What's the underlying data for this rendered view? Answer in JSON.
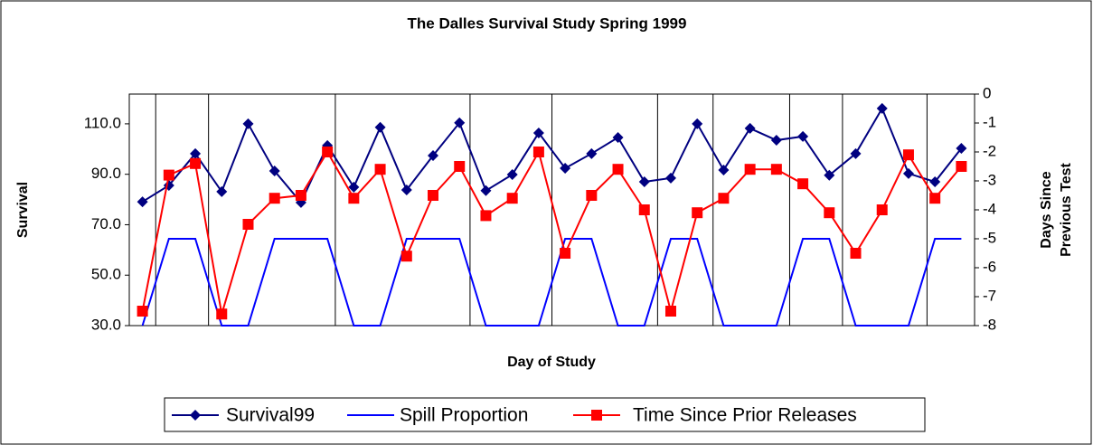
{
  "chart_data": {
    "type": "line",
    "title": "The Dalles Survival Study Spring 1999",
    "xlabel": "Day of Study",
    "ylabel": "Survival",
    "y2label": [
      "Days Since",
      "Previous Test"
    ],
    "categories": [
      null,
      null,
      null,
      null,
      null,
      null,
      null,
      null,
      null,
      null,
      null,
      null,
      null,
      null,
      null,
      null,
      null,
      null,
      null,
      null,
      null,
      null,
      null,
      null,
      null,
      null,
      null,
      null,
      null,
      null,
      null,
      null
    ],
    "dividers": [
      0.5,
      2.5,
      7.3,
      12.4,
      15.5,
      19.5,
      21.6,
      24.5,
      26.5,
      29.7
    ],
    "ylim": [
      30,
      121.8
    ],
    "yticks": [
      {
        "value": 30,
        "label": "30.0"
      },
      {
        "value": 50,
        "label": "50.0"
      },
      {
        "value": 70,
        "label": "70.0"
      },
      {
        "value": 90,
        "label": "90.0"
      },
      {
        "value": 110,
        "label": "110.0"
      }
    ],
    "y2lim": [
      -8,
      0
    ],
    "y2ticks": [
      0,
      -1,
      -2,
      -3,
      -4,
      -5,
      -6,
      -7,
      -8
    ],
    "legend": "bottom",
    "series": [
      {
        "name": "Survival99",
        "color": "#000080",
        "marker": "diamond",
        "values": [
          79.1,
          85.6,
          98.2,
          83.1,
          110,
          91.3,
          78.8,
          101.4,
          84.9,
          108.6,
          83.8,
          97.4,
          110.4,
          83.5,
          89.9,
          106.4,
          92.4,
          98.2,
          104.6,
          87,
          88.5,
          110,
          91.7,
          108.2,
          103.5,
          105,
          89.6,
          98.2,
          116.1,
          90.3,
          87,
          100.3
        ]
      },
      {
        "name": "Spill Proportion",
        "color": "#0000ff",
        "marker": "none",
        "axis": "y2",
        "values": [
          -8,
          -5,
          -5,
          -8,
          -8,
          -5,
          -5,
          -5,
          -8,
          -8,
          -5,
          -5,
          -5,
          -8,
          -8,
          -8,
          -5,
          -5,
          -8,
          -8,
          -5,
          -5,
          -8,
          -8,
          -8,
          -5,
          -5,
          -8,
          -8,
          -8,
          -5,
          -5
        ]
      },
      {
        "name": "Time Since Prior Releases",
        "color": "#ff0000",
        "marker": "square",
        "axis": "y2",
        "values": [
          -7.5,
          -2.8,
          -2.4,
          -7.6,
          -4.5,
          -3.6,
          -3.5,
          -2,
          -3.6,
          -2.6,
          -5.6,
          -3.5,
          -2.5,
          -4.2,
          -3.6,
          -2,
          -5.5,
          -3.5,
          -2.6,
          -4,
          -7.5,
          -4.1,
          -3.6,
          -2.6,
          -2.6,
          -3.1,
          -4.1,
          -5.5,
          -4,
          -2.1,
          -3.6,
          -2.5
        ]
      }
    ]
  }
}
